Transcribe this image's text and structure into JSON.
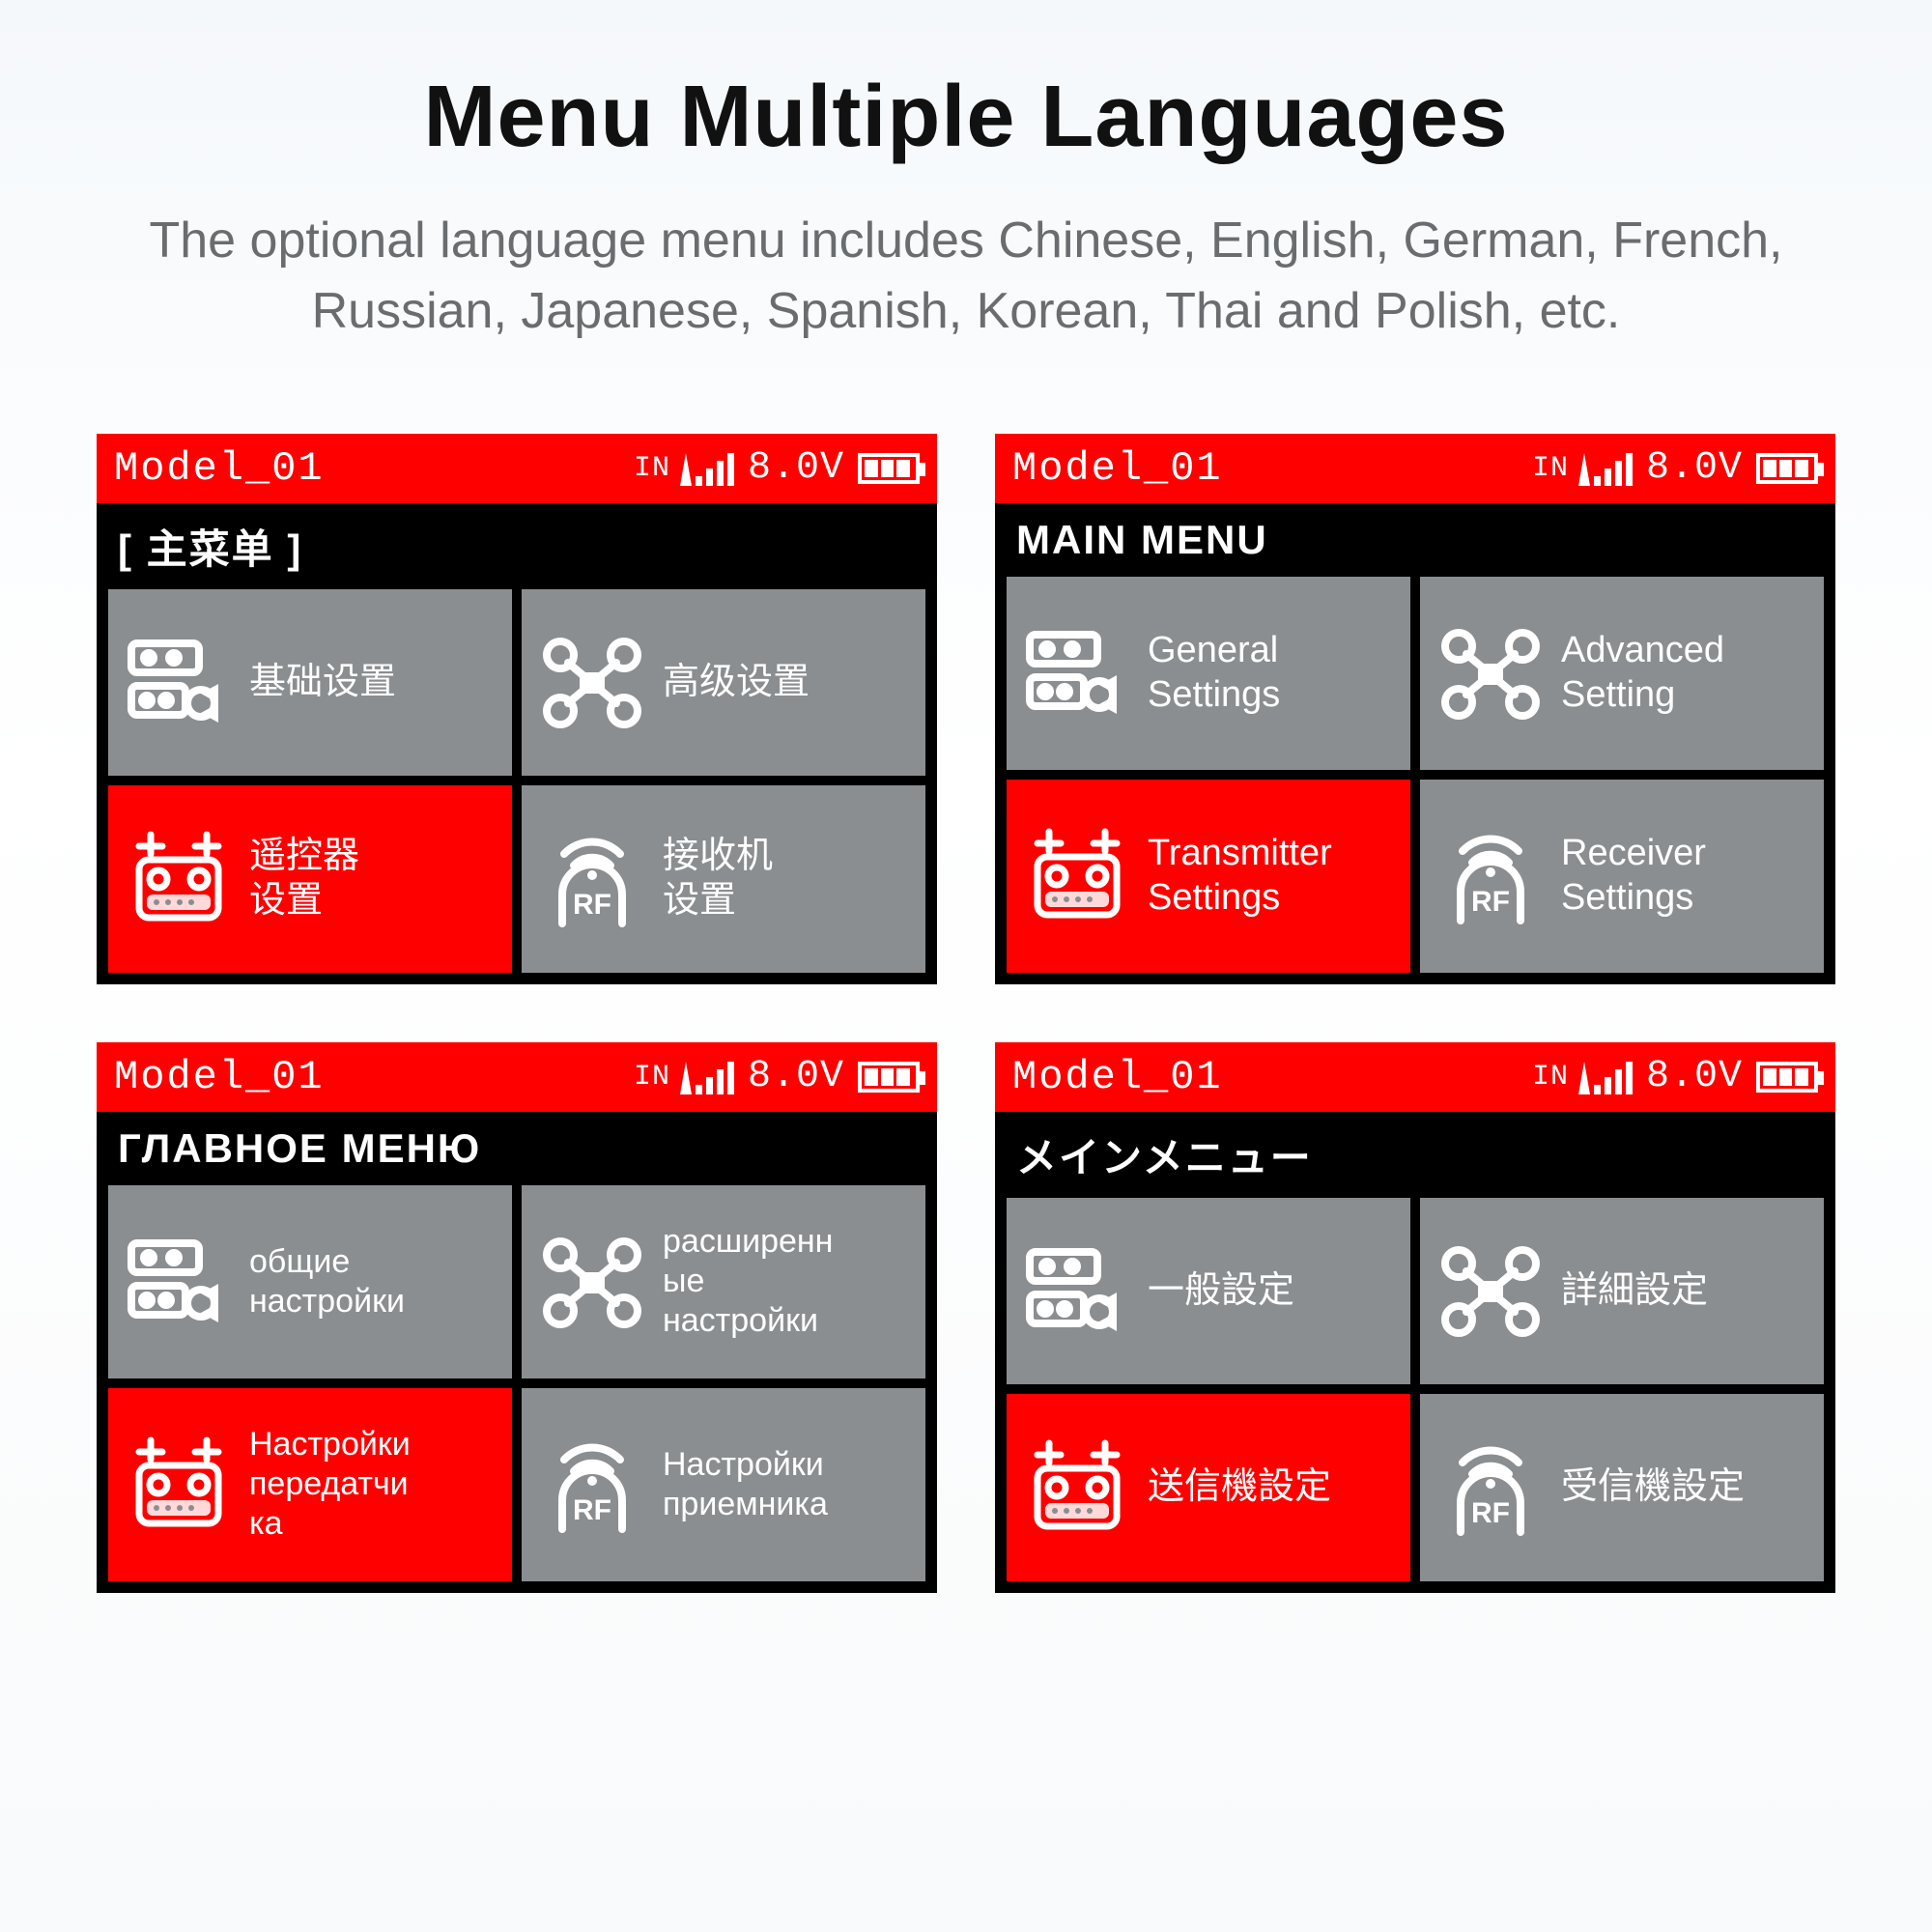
{
  "heading": "Menu Multiple Languages",
  "subheading": "The optional language menu includes Chinese, English, German, French, Russian, Japanese, Spanish, Korean, Thai and Polish, etc.",
  "colors": {
    "red": "#ff0000",
    "gray": "#8b8e90",
    "black": "#000000",
    "white": "#ffffff",
    "page_bg_top": "#f5f8fb"
  },
  "statusbar": {
    "model": "Model_01",
    "in_label": "IN",
    "voltage": "8.0V",
    "battery_segments": 3,
    "signal_bars": 4
  },
  "screens": [
    {
      "lang": "chinese",
      "menu_title": "[ 主菜单 ]",
      "tiles": [
        {
          "icon": "sliders",
          "label": "基础设置",
          "selected": false
        },
        {
          "icon": "drone",
          "label": "高级设置",
          "selected": false
        },
        {
          "icon": "radio",
          "label": "遥控器\n设置",
          "selected": true
        },
        {
          "icon": "rf",
          "label": "接收机\n设置",
          "selected": false
        }
      ]
    },
    {
      "lang": "english",
      "menu_title": "MAIN MENU",
      "tiles": [
        {
          "icon": "sliders",
          "label": "General\nSettings",
          "selected": false
        },
        {
          "icon": "drone",
          "label": "Advanced\nSetting",
          "selected": false
        },
        {
          "icon": "radio",
          "label": "Transmitter\nSettings",
          "selected": true
        },
        {
          "icon": "rf",
          "label": "Receiver\nSettings",
          "selected": false
        }
      ]
    },
    {
      "lang": "russian",
      "menu_title": "ГЛАВНОЕ МЕНЮ",
      "tiles": [
        {
          "icon": "sliders",
          "label": "общие\nнастройки",
          "selected": false
        },
        {
          "icon": "drone",
          "label": "расширенн\nые\nнастройки",
          "selected": false
        },
        {
          "icon": "radio",
          "label": "Настройки\nпередатчи\nка",
          "selected": true
        },
        {
          "icon": "rf",
          "label": "Настройки\nприемника",
          "selected": false
        }
      ]
    },
    {
      "lang": "japanese",
      "menu_title": "メインメニュー",
      "tiles": [
        {
          "icon": "sliders",
          "label": "一般設定",
          "selected": false
        },
        {
          "icon": "drone",
          "label": "詳細設定",
          "selected": false
        },
        {
          "icon": "radio",
          "label": "送信機設定",
          "selected": true
        },
        {
          "icon": "rf",
          "label": "受信機設定",
          "selected": false
        }
      ]
    }
  ]
}
